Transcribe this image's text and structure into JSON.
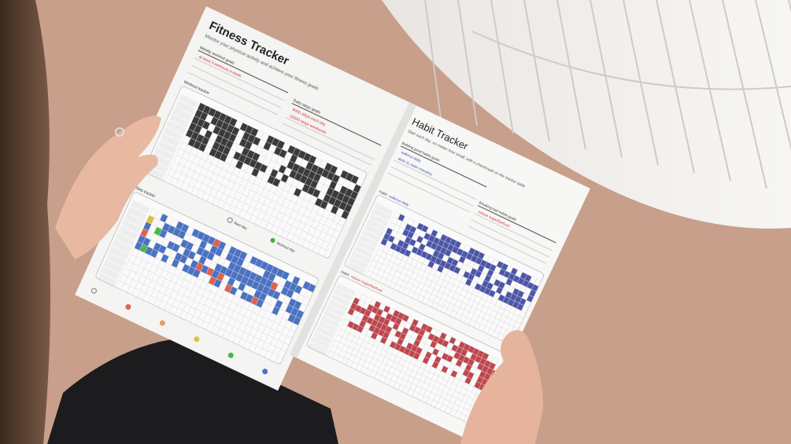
{
  "colors": {
    "background": "#c79f8b",
    "paper": "#f4f4f2",
    "workout": "#3a3a3a",
    "steps": "#4a72c4",
    "habit_good": "#4b56a8",
    "habit_bad": "#c0464e",
    "goal_red": "#d8323c",
    "goal_blue": "#3a48b8"
  },
  "fitness": {
    "title": "Fitness Tracker",
    "subtitle": "Monitor your physical activity and achieve your fitness goals",
    "weekly_goals_label": "Weekly workout goals",
    "weekly_goals": [
      "at least 3 workouts a week"
    ],
    "daily_steps_label": "Daily steps goals",
    "daily_steps": [
      "8000 steps each day",
      "10000 steps weekends"
    ],
    "workout_tracker_label": "Workout tracker",
    "workout_legend": "Workout day",
    "rest_legend": "Rest day",
    "step_tracker_label": "Step tracker"
  },
  "habit": {
    "title": "Habit Tracker",
    "subtitle": "Start each day, no matter how small, with a checkmark on the tracker table",
    "building_label": "Building good habits goals",
    "building": [
      "walk/run daily",
      "drink 2L water everyday"
    ],
    "breaking_label": "Breaking bad habits goals",
    "breaking": [
      "reduce sugar/fastfood"
    ],
    "tracker1_prefix": "Habit:",
    "tracker1_name": "walk/run daily",
    "tracker2_prefix": "Habit:",
    "tracker2_name": "reduce sugar/fastfood"
  }
}
